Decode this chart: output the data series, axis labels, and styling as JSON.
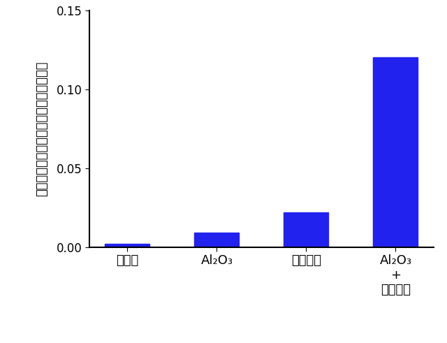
{
  "categories_line1": [
    "無修飾",
    "Al₂O₃",
    "ポリマー",
    "Al₂O₃"
  ],
  "categories_line2": [
    "",
    "",
    "",
    "+"
  ],
  "categories_line3": [
    "",
    "",
    "",
    "ポリマー"
  ],
  "values": [
    0.002,
    0.009,
    0.022,
    0.12
  ],
  "bar_color": "#2222EE",
  "ylabel": "太陽エネルギーの水素への変換効率／％",
  "ylim": [
    0,
    0.15
  ],
  "yticks": [
    0.0,
    0.05,
    0.1,
    0.15
  ],
  "ytick_labels": [
    "0.00",
    "0.05",
    "0.10",
    "0.15"
  ],
  "bar_width": 0.5,
  "figsize": [
    6.4,
    4.91
  ],
  "dpi": 100,
  "ylabel_fontsize": 13,
  "tick_fontsize": 12,
  "xlabel_fontsize": 13
}
